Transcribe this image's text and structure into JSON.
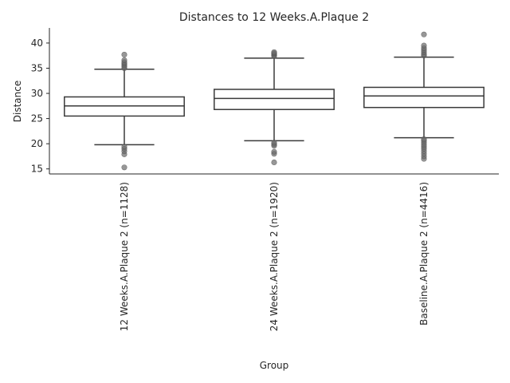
{
  "chart_data": {
    "type": "box",
    "title": "Distances to 12 Weeks.A.Plaque 2",
    "xlabel": "Group",
    "ylabel": "Distance",
    "ylim": [
      14,
      43
    ],
    "yticks": [
      15,
      20,
      25,
      30,
      35,
      40
    ],
    "grid": false,
    "categories": [
      "12 Weeks.A.Plaque 2 (n=1128)",
      "24 Weeks.A.Plaque 2 (n=1920)",
      "Baseline.A.Plaque 2 (n=4416)"
    ],
    "boxes": [
      {
        "whisker_low": 19.8,
        "q1": 25.5,
        "median": 27.5,
        "q3": 29.3,
        "whisker_high": 34.8,
        "outliers": [
          15.3,
          17.9,
          18.5,
          19.0,
          19.4,
          35.0,
          35.3,
          35.6,
          35.9,
          36.2,
          36.6,
          37.7
        ]
      },
      {
        "whisker_low": 20.6,
        "q1": 26.8,
        "median": 29.0,
        "q3": 30.8,
        "whisker_high": 37.0,
        "outliers": [
          16.3,
          18.0,
          18.4,
          19.6,
          19.9,
          20.2,
          37.4,
          37.6,
          37.8,
          38.0,
          38.2
        ]
      },
      {
        "whisker_low": 21.2,
        "q1": 27.2,
        "median": 29.5,
        "q3": 31.2,
        "whisker_high": 37.2,
        "outliers": [
          17.0,
          17.5,
          18.0,
          18.5,
          19.0,
          19.4,
          19.8,
          20.2,
          20.6,
          20.9,
          37.5,
          37.8,
          38.2,
          38.6,
          39.0,
          39.5,
          41.7
        ]
      }
    ]
  },
  "colors": {
    "box_edge": "#3a3a3a",
    "outlier": "#6b6b6b",
    "axis": "#262626"
  }
}
